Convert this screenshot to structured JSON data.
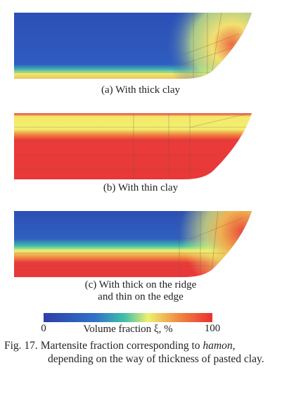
{
  "panels": [
    {
      "caption": [
        "(a) With thick clay"
      ]
    },
    {
      "caption": [
        "(b) With thin clay"
      ]
    },
    {
      "caption": [
        "(c) With thick on the ridge",
        "and thin on the edge"
      ]
    }
  ],
  "colorbar": {
    "label": "Volume fraction ξ, %",
    "ticks": [
      0,
      100
    ]
  },
  "figure_caption": {
    "label": "Fig. 17.",
    "text_before": "Martensite fraction corresponding to",
    "emphasis": "hamon",
    "text_after": ", depending on the way of thickness of pasted clay."
  }
}
